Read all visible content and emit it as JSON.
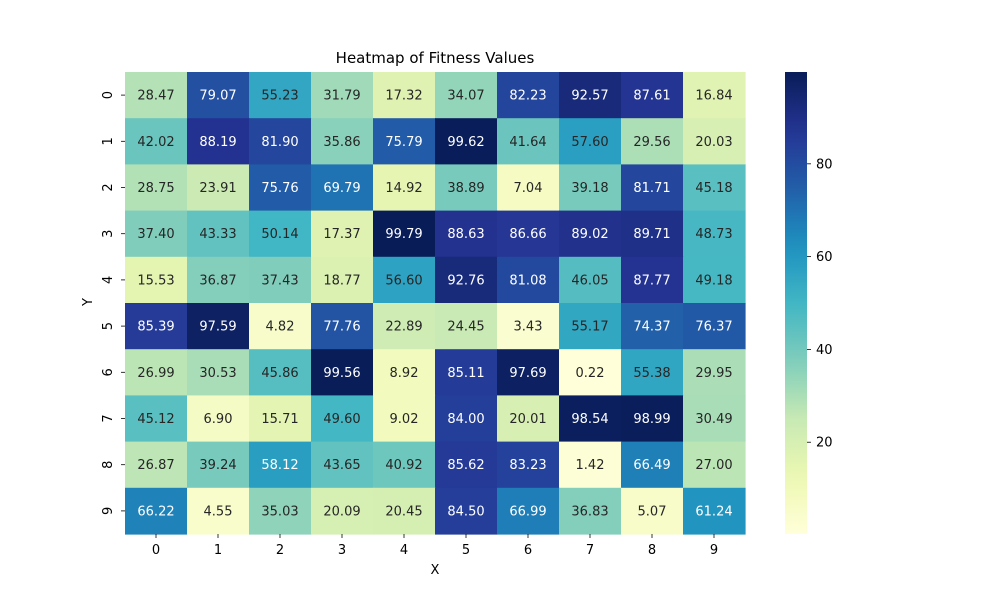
{
  "chart_data": {
    "type": "heatmap",
    "title": "Heatmap of Fitness Values",
    "xlabel": "X",
    "ylabel": "Y",
    "x_categories": [
      "0",
      "1",
      "2",
      "3",
      "4",
      "5",
      "6",
      "7",
      "8",
      "9"
    ],
    "y_categories": [
      "0",
      "1",
      "2",
      "3",
      "4",
      "5",
      "6",
      "7",
      "8",
      "9"
    ],
    "values": [
      [
        28.47,
        79.07,
        55.23,
        31.79,
        17.32,
        34.07,
        82.23,
        92.57,
        87.61,
        16.84
      ],
      [
        42.02,
        88.19,
        81.9,
        35.86,
        75.79,
        99.62,
        41.64,
        57.6,
        29.56,
        20.03
      ],
      [
        28.75,
        23.91,
        75.76,
        69.79,
        14.92,
        38.89,
        7.04,
        39.18,
        81.71,
        45.18
      ],
      [
        37.4,
        43.33,
        50.14,
        17.37,
        99.79,
        88.63,
        86.66,
        89.02,
        89.71,
        48.73
      ],
      [
        15.53,
        36.87,
        37.43,
        18.77,
        56.6,
        92.76,
        81.08,
        46.05,
        87.77,
        49.18
      ],
      [
        85.39,
        97.59,
        4.82,
        77.76,
        22.89,
        24.45,
        3.43,
        55.17,
        74.37,
        76.37
      ],
      [
        26.99,
        30.53,
        45.86,
        99.56,
        8.92,
        85.11,
        97.69,
        0.22,
        55.38,
        29.95
      ],
      [
        45.12,
        6.9,
        15.71,
        49.6,
        9.02,
        84.0,
        20.01,
        98.54,
        98.99,
        30.49
      ],
      [
        26.87,
        39.24,
        58.12,
        43.65,
        40.92,
        85.62,
        83.23,
        1.42,
        66.49,
        27.0
      ],
      [
        66.22,
        4.55,
        35.03,
        20.09,
        20.45,
        84.5,
        66.99,
        36.83,
        5.07,
        61.24
      ]
    ],
    "value_format_decimals": 2,
    "colormap": "YlGnBu",
    "colorbar": {
      "vmin": 0.22,
      "vmax": 99.79,
      "ticks": [
        20,
        40,
        60,
        80
      ]
    },
    "grid": false
  }
}
